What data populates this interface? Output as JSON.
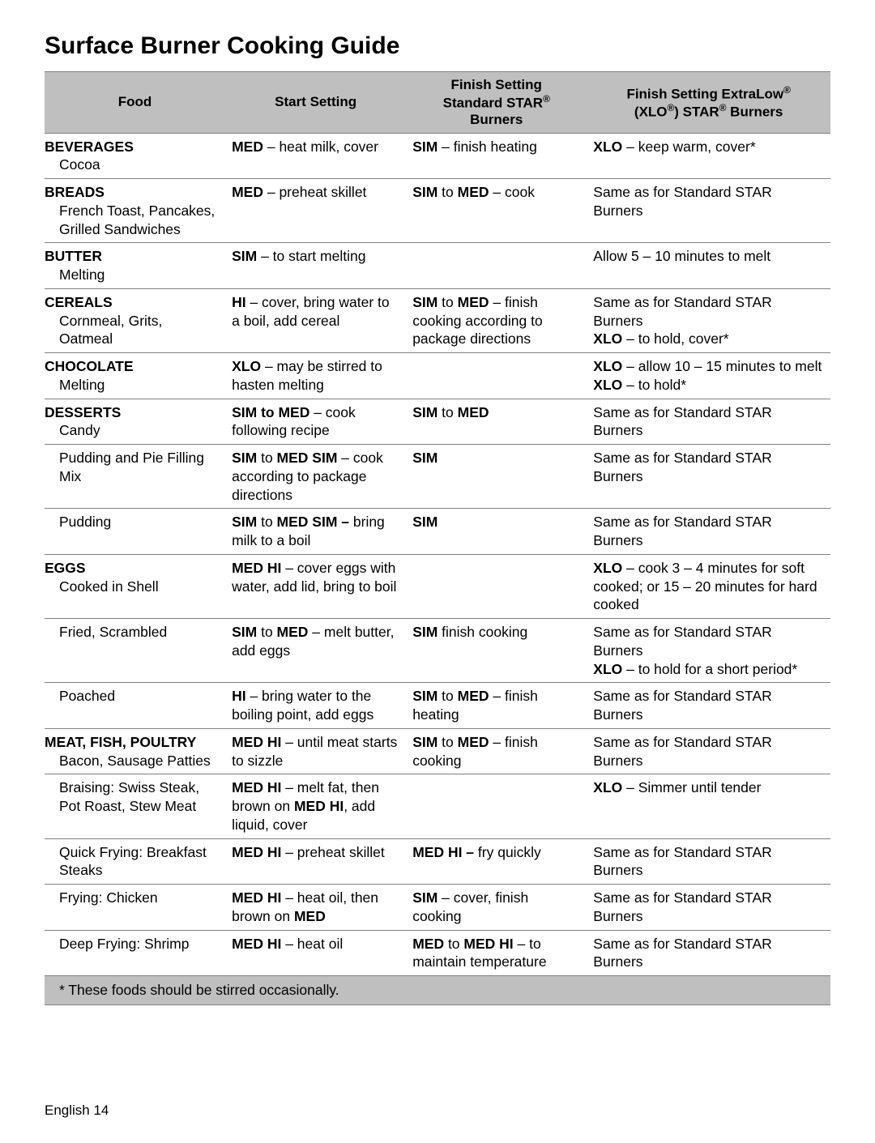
{
  "title": "Surface Burner Cooking Guide",
  "columns": {
    "food": "Food",
    "start": "Start Setting",
    "finish_std_line1": "Finish Setting",
    "finish_std_line2_a": "Standard STAR",
    "finish_std_line3": "Burners",
    "finish_xlo_line1_a": "Finish Setting ExtraLow",
    "finish_xlo_line2_a": "(XLO",
    "finish_xlo_line2_b": ") STAR",
    "finish_xlo_line2_c": " Burners"
  },
  "rows": [
    {
      "cat": "BEVERAGES",
      "sub": "Cocoa",
      "start": "<b>MED</b> – heat milk, cover",
      "std": "<b>SIM</b> – finish heating",
      "xlo": "<b>XLO</b> – keep warm, cover*"
    },
    {
      "cat": "BREADS",
      "sub": "French Toast, Pancakes, Grilled Sandwiches",
      "start": "<b>MED</b> – preheat skillet",
      "std": "<b>SIM</b> to <b>MED</b> – cook",
      "xlo": "Same as for Standard STAR Burners"
    },
    {
      "cat": "BUTTER",
      "sub": "Melting",
      "start": "<b>SIM</b> – to start melting",
      "std": "",
      "xlo": "Allow 5 – 10 minutes to melt"
    },
    {
      "cat": "CEREALS",
      "sub": "Cornmeal, Grits, Oatmeal",
      "start": "<b>HI</b> – cover, bring water to a boil, add cereal",
      "std": "<b>SIM</b> to <b>MED</b> – finish cooking according to package directions",
      "xlo": "Same as for Standard STAR Burners<br><b>XLO</b> – to hold, cover*"
    },
    {
      "cat": "CHOCOLATE",
      "sub": "Melting",
      "start": "<b>XLO</b> – may be stirred to hasten melting",
      "std": "",
      "xlo": "<b>XLO</b> – allow 10 – 15 minutes to melt<br><b>XLO</b> – to hold*"
    },
    {
      "cat": "DESSERTS",
      "sub": "Candy",
      "start": "<b>SIM to MED</b> – cook following recipe",
      "std": "<b>SIM</b> to <b>MED</b>",
      "xlo": "Same as for Standard STAR Burners"
    },
    {
      "cat": "",
      "sub": "Pudding and Pie Filling Mix",
      "start": "<b>SIM</b> to <b>MED SIM</b> – cook according to package directions",
      "std": "<b>SIM</b>",
      "xlo": "Same as for Standard STAR Burners"
    },
    {
      "cat": "",
      "sub": "Pudding",
      "start": "<b>SIM</b> to <b>MED SIM –</b> bring milk to a boil",
      "std": "<b>SIM</b>",
      "xlo": "Same as for Standard STAR Burners"
    },
    {
      "cat": "EGGS",
      "sub": "Cooked in Shell",
      "start": "<b>MED HI</b> – cover eggs with water, add lid, bring to boil",
      "std": "",
      "xlo": "<b>XLO</b> – cook 3 – 4 minutes for soft cooked; or 15 – 20 minutes for hard cooked"
    },
    {
      "cat": "",
      "sub": "Fried, Scrambled",
      "start": "<b>SIM</b> to <b>MED</b> – melt butter, add eggs",
      "std": "<b>SIM</b> finish cooking",
      "xlo": "Same as for Standard STAR Burners<br><b>XLO</b> – to hold for a short period*"
    },
    {
      "cat": "",
      "sub": "Poached",
      "start": "<b>HI</b> – bring water to the boiling point, add eggs",
      "std": "<b>SIM</b> to <b>MED</b> – finish heating",
      "xlo": "Same as for Standard STAR Burners"
    },
    {
      "cat": "MEAT, FISH, POULTRY",
      "sub": "Bacon, Sausage Patties",
      "start": "<b>MED HI</b> – until meat starts to sizzle",
      "std": "<b>SIM</b> to <b>MED</b> – finish cooking",
      "xlo": "Same as for Standard STAR Burners"
    },
    {
      "cat": "",
      "sub": "Braising: Swiss Steak, Pot Roast, Stew Meat",
      "start": "<b>MED HI</b> – melt fat, then brown on <b>MED HI</b>, add liquid, cover",
      "std": "",
      "xlo": "<b>XLO</b> – Simmer until tender"
    },
    {
      "cat": "",
      "sub": "Quick Frying: Breakfast Steaks",
      "start": "<b>MED HI</b> – preheat skillet",
      "std": "<b>MED HI –</b> fry quickly",
      "xlo": "Same as for Standard STAR Burners"
    },
    {
      "cat": "",
      "sub": "Frying: Chicken",
      "start": "<b>MED HI</b> – heat oil, then brown on <b>MED</b>",
      "std": "<b>SIM</b> – cover, finish cooking",
      "xlo": "Same as for Standard STAR Burners"
    },
    {
      "cat": "",
      "sub": "Deep Frying: Shrimp",
      "start": "<b>MED HI</b> – heat oil",
      "std": "<b>MED</b> to <b>MED HI</b> – to maintain temperature",
      "xlo": "Same as for Standard STAR Burners"
    }
  ],
  "footnote": "* These foods should be stirred occasionally.",
  "footer": "English 14",
  "col_widths": [
    "23%",
    "23%",
    "23%",
    "31%"
  ],
  "colors": {
    "header_bg": "#bfbfbf",
    "border": "#808080"
  }
}
